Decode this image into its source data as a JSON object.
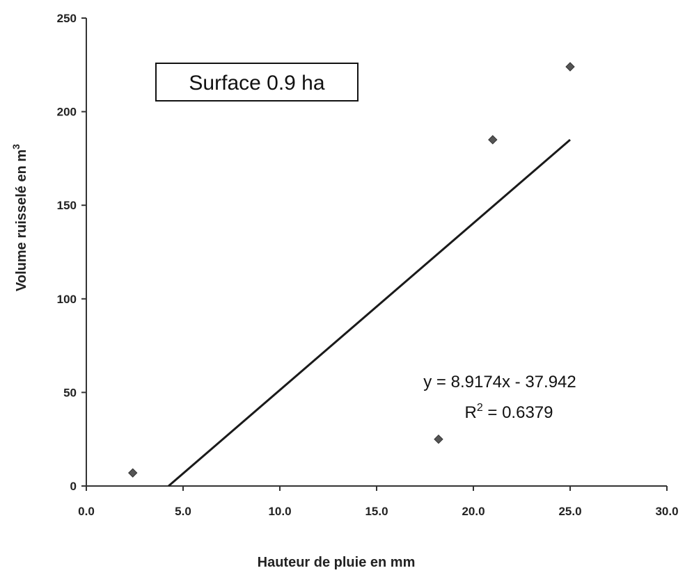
{
  "chart_data": {
    "type": "scatter",
    "title": "",
    "xlabel": "Hauteur de pluie en mm",
    "ylabel": "Volume ruisselé en m",
    "ylabel_superscript": "3",
    "xlim": [
      0,
      30
    ],
    "ylim": [
      0,
      250
    ],
    "x_ticks": [
      0,
      5,
      10,
      15,
      20,
      25,
      30
    ],
    "x_tick_labels": [
      "0.0",
      "5.0",
      "10.0",
      "15.0",
      "20.0",
      "25.0",
      "30.0"
    ],
    "y_ticks": [
      0,
      50,
      100,
      150,
      200,
      250
    ],
    "y_tick_labels": [
      "0",
      "50",
      "100",
      "150",
      "200",
      "250"
    ],
    "grid": false,
    "legend": "none",
    "points": [
      {
        "x": 2.4,
        "y": 7
      },
      {
        "x": 18.2,
        "y": 25
      },
      {
        "x": 21.0,
        "y": 185
      },
      {
        "x": 25.0,
        "y": 224
      }
    ],
    "trendline": {
      "type": "linear",
      "slope": 8.9174,
      "intercept": -37.942,
      "x_start": 4.25,
      "x_end": 25.0,
      "equation_label": "y = 8.9174x - 37.942",
      "r2_prefix": "R",
      "r2_superscript": "2",
      "r2_value_label": " = 0.6379"
    },
    "annotation_box": {
      "text": "Surface 0.9 ha"
    },
    "colors": {
      "marker": "#555555",
      "trendline": "#1a1a1a",
      "axis": "#333333",
      "text": "#222222"
    }
  }
}
